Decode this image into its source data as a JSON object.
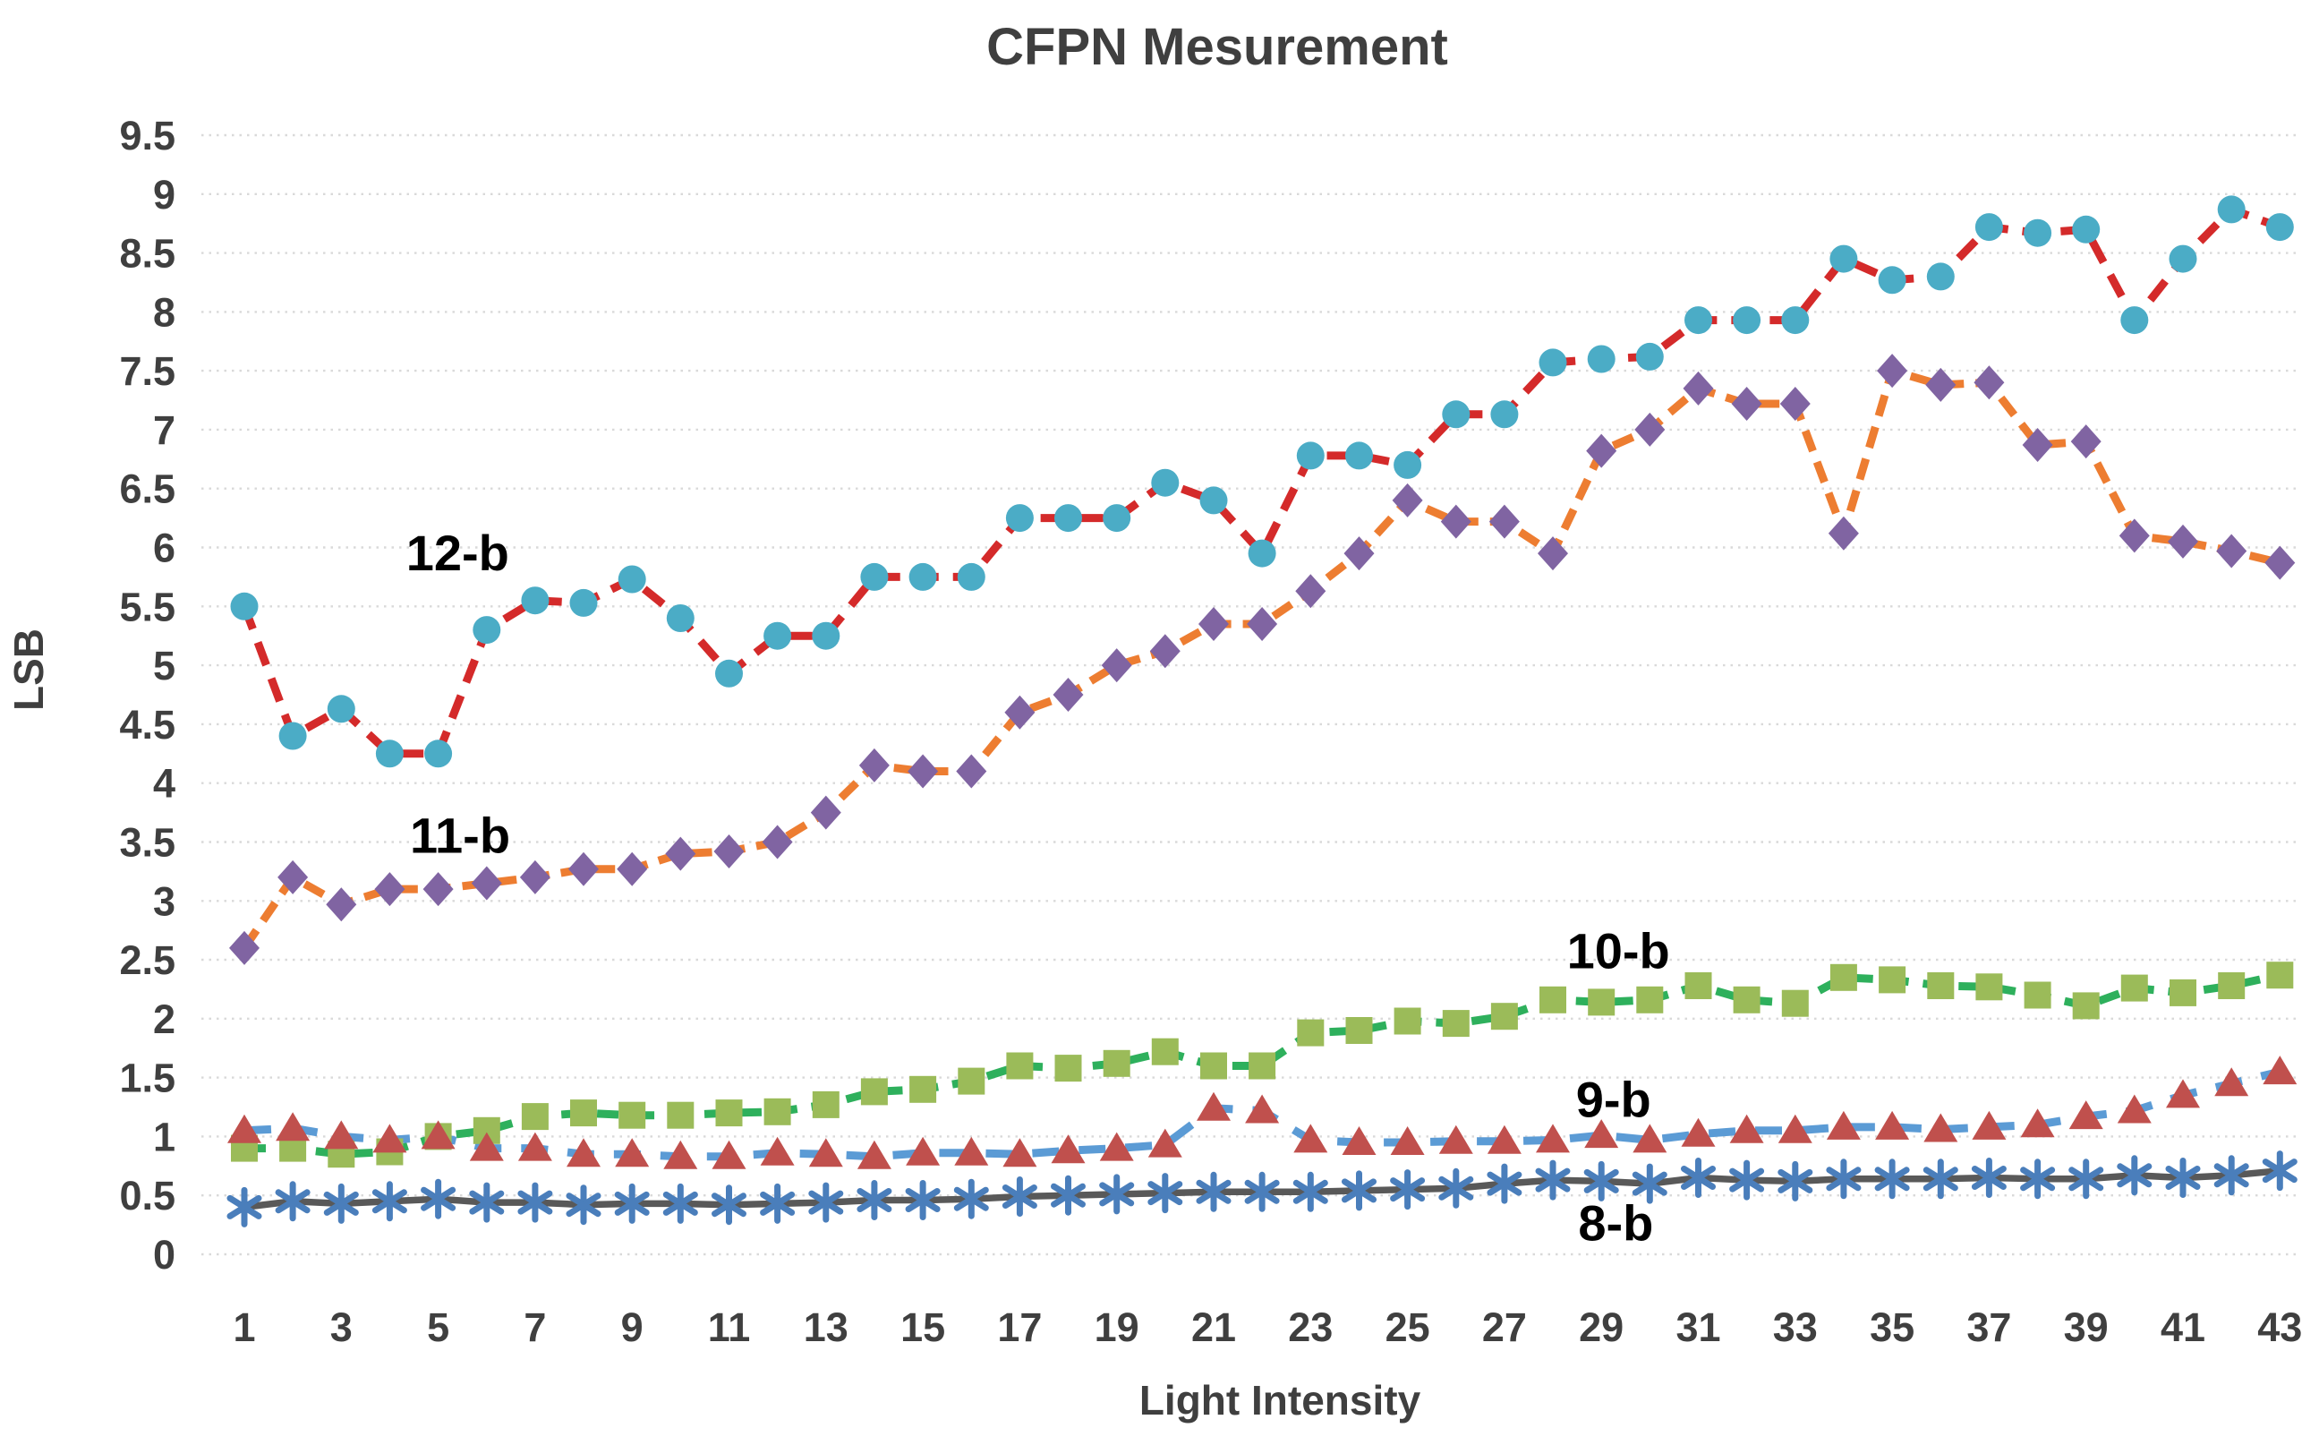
{
  "title": "CFPN Mesurement",
  "colors": {
    "background": "#ffffff",
    "grid": "#d9d9d9",
    "text": "#3f3f3f",
    "series_label_text": "#000000"
  },
  "chart_data": {
    "type": "line",
    "title": "CFPN Mesurement",
    "xlabel": "Light Intensity",
    "ylabel": "LSB",
    "grid": "horizontal-dotted",
    "legend_position": "inline-annotations",
    "xlim": [
      1,
      43
    ],
    "ylim": [
      0,
      9.5
    ],
    "y_tick_step": 0.5,
    "y_ticks": [
      0,
      0.5,
      1,
      1.5,
      2,
      2.5,
      3,
      3.5,
      4,
      4.5,
      5,
      5.5,
      6,
      6.5,
      7,
      7.5,
      8,
      8.5,
      9,
      9.5
    ],
    "x_tick_labels": [
      1,
      3,
      5,
      7,
      9,
      11,
      13,
      15,
      17,
      19,
      21,
      23,
      25,
      27,
      29,
      31,
      33,
      35,
      37,
      39,
      41,
      43
    ],
    "x": [
      1,
      2,
      3,
      4,
      5,
      6,
      7,
      8,
      9,
      10,
      11,
      12,
      13,
      14,
      15,
      16,
      17,
      18,
      19,
      20,
      21,
      22,
      23,
      24,
      25,
      26,
      27,
      28,
      29,
      30,
      31,
      32,
      33,
      34,
      35,
      36,
      37,
      38,
      39,
      40,
      41,
      42,
      43
    ],
    "series": [
      {
        "name": "12-b",
        "marker": "circle",
        "marker_color": "#4bacc6",
        "line_color": "#d42a2a",
        "line_style": "dashed",
        "label_x": 5.4,
        "label_y": 5.96,
        "values": [
          5.5,
          4.4,
          4.63,
          4.25,
          4.25,
          5.3,
          5.55,
          5.53,
          5.73,
          5.4,
          4.93,
          5.25,
          5.25,
          5.75,
          5.75,
          5.75,
          6.25,
          6.25,
          6.25,
          6.55,
          6.4,
          5.95,
          6.78,
          6.78,
          6.7,
          7.13,
          7.13,
          7.57,
          7.6,
          7.62,
          7.93,
          7.93,
          7.93,
          8.45,
          8.27,
          8.3,
          8.72,
          8.67,
          8.7,
          7.93,
          8.45,
          8.87,
          8.72
        ]
      },
      {
        "name": "11-b",
        "marker": "diamond",
        "marker_color": "#8064a2",
        "line_color": "#ed7d31",
        "line_style": "dashed",
        "label_x": 5.45,
        "label_y": 3.56,
        "values": [
          2.6,
          3.2,
          2.97,
          3.1,
          3.1,
          3.15,
          3.2,
          3.27,
          3.27,
          3.4,
          3.42,
          3.5,
          3.75,
          4.15,
          4.1,
          4.1,
          4.6,
          4.75,
          5.0,
          5.12,
          5.35,
          5.35,
          5.63,
          5.95,
          6.4,
          6.22,
          6.22,
          5.95,
          6.82,
          7.0,
          7.35,
          7.22,
          7.22,
          6.12,
          7.5,
          7.38,
          7.4,
          6.87,
          6.9,
          6.1,
          6.05,
          5.97,
          5.87
        ]
      },
      {
        "name": "10-b",
        "marker": "square",
        "marker_color": "#9bbb59",
        "line_color": "#2eb05c",
        "line_style": "dashed",
        "label_x": 29.35,
        "label_y": 2.58,
        "values": [
          0.9,
          0.9,
          0.85,
          0.87,
          1.0,
          1.05,
          1.17,
          1.2,
          1.18,
          1.18,
          1.2,
          1.21,
          1.27,
          1.38,
          1.4,
          1.47,
          1.6,
          1.58,
          1.62,
          1.72,
          1.6,
          1.6,
          1.88,
          1.9,
          1.98,
          1.96,
          2.02,
          2.16,
          2.14,
          2.16,
          2.28,
          2.16,
          2.13,
          2.35,
          2.33,
          2.28,
          2.27,
          2.2,
          2.11,
          2.26,
          2.22,
          2.28,
          2.37
        ]
      },
      {
        "name": "9-b",
        "marker": "triangle",
        "marker_color": "#c0504d",
        "line_color": "#5b9bd5",
        "line_style": "dashed",
        "label_x": 29.25,
        "label_y": 1.32,
        "values": [
          1.05,
          1.07,
          1.0,
          0.97,
          1.0,
          0.9,
          0.9,
          0.85,
          0.85,
          0.83,
          0.83,
          0.86,
          0.85,
          0.83,
          0.86,
          0.86,
          0.85,
          0.88,
          0.9,
          0.93,
          1.24,
          1.22,
          0.97,
          0.95,
          0.95,
          0.96,
          0.96,
          0.97,
          1.01,
          0.97,
          1.02,
          1.05,
          1.05,
          1.08,
          1.08,
          1.06,
          1.08,
          1.1,
          1.17,
          1.22,
          1.35,
          1.45,
          1.55
        ]
      },
      {
        "name": "8-b",
        "marker": "asterisk",
        "marker_color": "#4a7ebb",
        "line_color": "#595959",
        "line_style": "solid",
        "label_x": 29.3,
        "label_y": 0.27,
        "values": [
          0.4,
          0.45,
          0.43,
          0.45,
          0.47,
          0.44,
          0.44,
          0.42,
          0.43,
          0.43,
          0.42,
          0.43,
          0.44,
          0.46,
          0.46,
          0.47,
          0.49,
          0.5,
          0.51,
          0.52,
          0.53,
          0.53,
          0.53,
          0.54,
          0.55,
          0.56,
          0.6,
          0.63,
          0.62,
          0.6,
          0.65,
          0.63,
          0.62,
          0.64,
          0.64,
          0.64,
          0.65,
          0.64,
          0.64,
          0.67,
          0.65,
          0.67,
          0.71
        ]
      }
    ]
  }
}
